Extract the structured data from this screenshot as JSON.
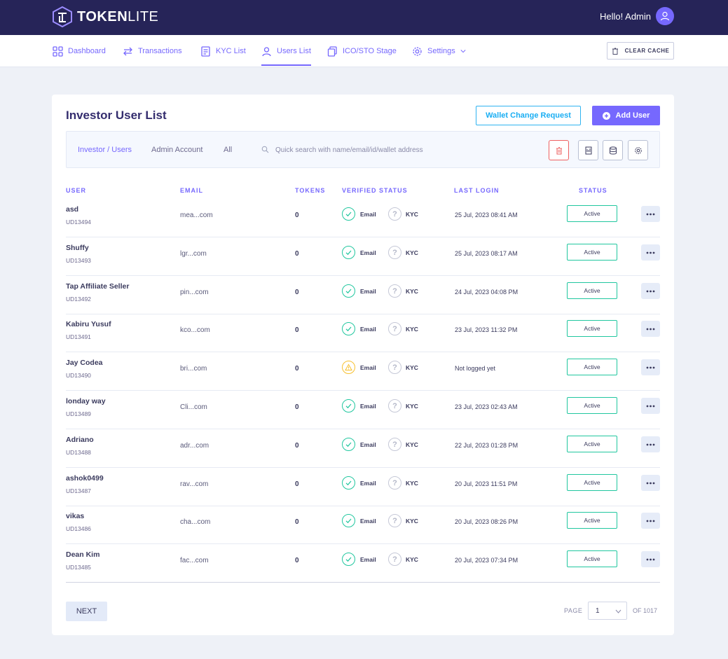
{
  "brand": {
    "name_bold": "TOKEN",
    "name_light": "LITE"
  },
  "header": {
    "greeting": "Hello! Admin"
  },
  "nav": {
    "items": [
      {
        "label": "Dashboard",
        "icon": "dashboard-icon"
      },
      {
        "label": "Transactions",
        "icon": "transactions-icon"
      },
      {
        "label": "KYC List",
        "icon": "kyc-list-icon"
      },
      {
        "label": "Users List",
        "icon": "users-icon",
        "active": true
      },
      {
        "label": "ICO/STO Stage",
        "icon": "stage-icon"
      },
      {
        "label": "Settings",
        "icon": "gear-icon"
      }
    ],
    "clear_cache": "CLEAR CACHE"
  },
  "page": {
    "title": "Investor User List",
    "wallet_change_label": "Wallet Change Request",
    "add_user_label": "Add User"
  },
  "filters": {
    "tabs": [
      "Investor / Users",
      "Admin Account",
      "All"
    ],
    "search_placeholder": "Quick search with name/email/id/wallet address"
  },
  "table": {
    "columns": [
      "USER",
      "EMAIL",
      "TOKENS",
      "VERIFIED STATUS",
      "LAST LOGIN",
      "STATUS"
    ],
    "email_label": "Email",
    "kyc_label": "KYC",
    "rows": [
      {
        "name": "asd",
        "id": "UD13494",
        "email": "mea...com",
        "tokens": "0",
        "email_verified": true,
        "last_login": "25 Jul, 2023 08:41 AM",
        "status": "Active"
      },
      {
        "name": "Shuffy",
        "id": "UD13493",
        "email": "lgr...com",
        "tokens": "0",
        "email_verified": true,
        "last_login": "25 Jul, 2023 08:17 AM",
        "status": "Active"
      },
      {
        "name": "Tap Affiliate Seller",
        "id": "UD13492",
        "email": "pin...com",
        "tokens": "0",
        "email_verified": true,
        "last_login": "24 Jul, 2023 04:08 PM",
        "status": "Active"
      },
      {
        "name": "Kabiru Yusuf",
        "id": "UD13491",
        "email": "kco...com",
        "tokens": "0",
        "email_verified": true,
        "last_login": "23 Jul, 2023 11:32 PM",
        "status": "Active"
      },
      {
        "name": "Jay Codea",
        "id": "UD13490",
        "email": "bri...com",
        "tokens": "0",
        "email_verified": false,
        "last_login": "Not logged yet",
        "status": "Active"
      },
      {
        "name": "londay way",
        "id": "UD13489",
        "email": "Cli...com",
        "tokens": "0",
        "email_verified": true,
        "last_login": "23 Jul, 2023 02:43 AM",
        "status": "Active"
      },
      {
        "name": "Adriano",
        "id": "UD13488",
        "email": "adr...com",
        "tokens": "0",
        "email_verified": true,
        "last_login": "22 Jul, 2023 01:28 PM",
        "status": "Active"
      },
      {
        "name": "ashok0499",
        "id": "UD13487",
        "email": "rav...com",
        "tokens": "0",
        "email_verified": true,
        "last_login": "20 Jul, 2023 11:51 PM",
        "status": "Active"
      },
      {
        "name": "vikas",
        "id": "UD13486",
        "email": "cha...com",
        "tokens": "0",
        "email_verified": true,
        "last_login": "20 Jul, 2023 08:26 PM",
        "status": "Active"
      },
      {
        "name": "Dean Kim",
        "id": "UD13485",
        "email": "fac...com",
        "tokens": "0",
        "email_verified": true,
        "last_login": "20 Jul, 2023 07:34 PM",
        "status": "Active"
      }
    ]
  },
  "pagination": {
    "next_label": "NEXT",
    "page_label": "PAGE",
    "current": "1",
    "of_label": "OF 1017"
  },
  "colors": {
    "header_bg": "#262458",
    "accent": "#7668fe",
    "success": "#21c79f",
    "info": "#1aaef3",
    "warning": "#f7c02f",
    "danger": "#ee6161"
  }
}
